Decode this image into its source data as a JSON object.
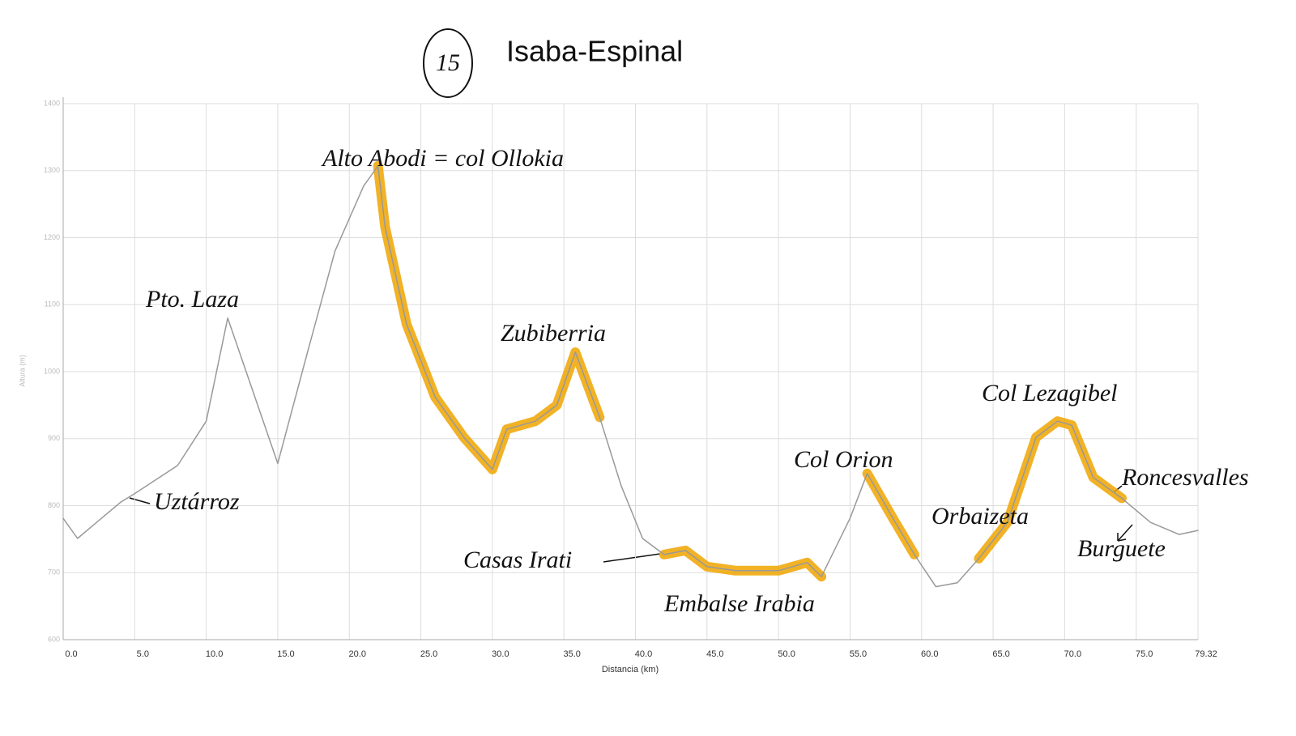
{
  "chart_data": {
    "type": "line",
    "stage": "15",
    "title": "Isaba-Espinal",
    "x_label": "Distancia (km)",
    "y_label": "Altura (m)",
    "x": [
      0,
      1,
      4,
      5,
      8,
      10,
      11.5,
      13,
      15,
      17,
      19,
      21,
      22,
      22.5,
      24,
      26,
      28,
      30,
      31,
      33,
      34.5,
      35.8,
      37.5,
      39,
      40.5,
      42,
      43.5,
      45,
      47,
      50,
      52,
      53,
      55,
      56.2,
      58,
      59.5,
      61,
      62.5,
      64,
      66,
      68,
      69.5,
      70.5,
      72,
      74,
      76,
      78,
      79.32
    ],
    "series": [
      {
        "color": "#999999",
        "values": [
          781,
          751,
          805,
          818,
          860,
          926,
          1080,
          987,
          863,
          1023,
          1180,
          1277,
          1307,
          1216,
          1071,
          962,
          902,
          854,
          914,
          926,
          950,
          1029,
          932,
          830,
          751,
          727,
          733,
          709,
          703,
          703,
          715,
          694,
          781,
          848,
          781,
          727,
          679,
          685,
          721,
          775,
          902,
          926,
          920,
          842,
          811,
          775,
          757,
          763
        ]
      },
      {
        "color": "#f0a500",
        "values": [
          null,
          null,
          null,
          null,
          null,
          null,
          null,
          null,
          null,
          null,
          null,
          null,
          1307,
          1216,
          1071,
          962,
          902,
          854,
          914,
          926,
          950,
          1029,
          932,
          null,
          null,
          727,
          733,
          709,
          703,
          703,
          715,
          694,
          null,
          848,
          781,
          727,
          null,
          null,
          721,
          775,
          902,
          926,
          920,
          842,
          811,
          null,
          null,
          null
        ]
      }
    ],
    "xlim": [
      0,
      79.32
    ],
    "xticks": [
      {
        "value": 0,
        "label": "0.0"
      },
      {
        "value": 5,
        "label": "5.0"
      },
      {
        "value": 10,
        "label": "10.0"
      },
      {
        "value": 15,
        "label": "15.0"
      },
      {
        "value": 20,
        "label": "20.0"
      },
      {
        "value": 25,
        "label": "25.0"
      },
      {
        "value": 30,
        "label": "30.0"
      },
      {
        "value": 35,
        "label": "35.0"
      },
      {
        "value": 40,
        "label": "40.0"
      },
      {
        "value": 45,
        "label": "45.0"
      },
      {
        "value": 50,
        "label": "50.0"
      },
      {
        "value": 55,
        "label": "55.0"
      },
      {
        "value": 60,
        "label": "60.0"
      },
      {
        "value": 65,
        "label": "65.0"
      },
      {
        "value": 70,
        "label": "70.0"
      },
      {
        "value": 75,
        "label": "75.0"
      },
      79.32
    ],
    "ylim": [
      600,
      1400
    ],
    "yticks": [
      600,
      700,
      800,
      900,
      1000,
      1100,
      1200,
      1300,
      1400
    ],
    "grid": true,
    "annotations": [
      "Pto. Laza",
      "Alto Abodi = col Ollokia",
      "Zubiberria",
      "Uztárroz",
      "Casas Irati",
      "Embalse Irabia",
      "Col Orion",
      "Orbaizeta",
      "Col Lezagibel",
      "Roncesvalles",
      "Burguete"
    ]
  }
}
